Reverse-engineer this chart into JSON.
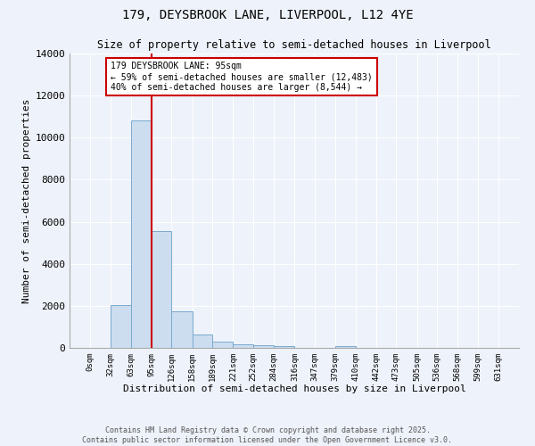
{
  "title": "179, DEYSBROOK LANE, LIVERPOOL, L12 4YE",
  "subtitle": "Size of property relative to semi-detached houses in Liverpool",
  "xlabel": "Distribution of semi-detached houses by size in Liverpool",
  "ylabel": "Number of semi-detached properties",
  "bar_color": "#ccddef",
  "bar_edge_color": "#7aaacf",
  "background_color": "#eef2fa",
  "grid_color": "#ffffff",
  "vline_x": 95,
  "vline_color": "#cc0000",
  "annotation_text": "179 DEYSBROOK LANE: 95sqm\n← 59% of semi-detached houses are smaller (12,483)\n40% of semi-detached houses are larger (8,544) →",
  "annotation_box_color": "#cc0000",
  "bin_edges": [
    0,
    32,
    63,
    95,
    126,
    158,
    189,
    221,
    252,
    284,
    316,
    347,
    379,
    410,
    442,
    473,
    505,
    536,
    568,
    599,
    631
  ],
  "bin_counts": [
    0,
    2050,
    10800,
    5550,
    1750,
    650,
    290,
    155,
    130,
    100,
    0,
    0,
    100,
    0,
    0,
    0,
    0,
    0,
    0,
    0
  ],
  "ylim": [
    0,
    14000
  ],
  "yticks": [
    0,
    2000,
    4000,
    6000,
    8000,
    10000,
    12000,
    14000
  ],
  "copyright_text": "Contains HM Land Registry data © Crown copyright and database right 2025.\nContains public sector information licensed under the Open Government Licence v3.0.",
  "figsize": [
    6.0,
    5.0
  ],
  "dpi": 100
}
